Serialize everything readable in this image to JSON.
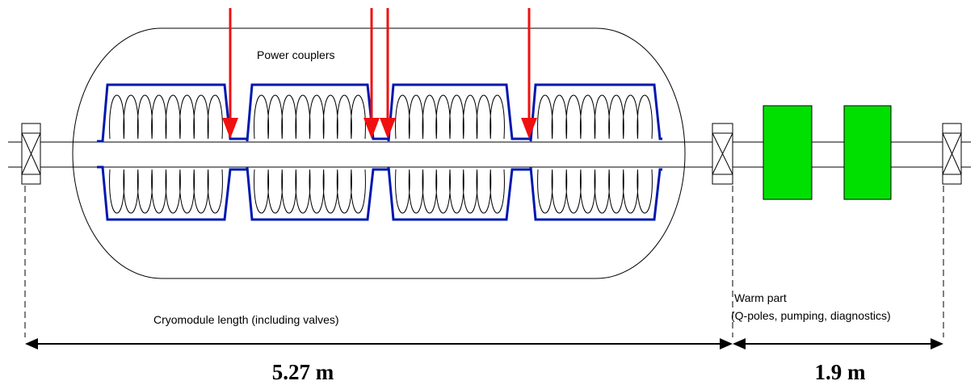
{
  "labels": {
    "couplers": "Power couplers",
    "cryomodule": "Cryomodule length (including valves)",
    "warm_title": "Warm part",
    "warm_detail": "(Q-poles, pumping, diagnostics)"
  },
  "dimensions": {
    "cryomodule": "5.27 m",
    "warm": "1.9 m"
  }
}
